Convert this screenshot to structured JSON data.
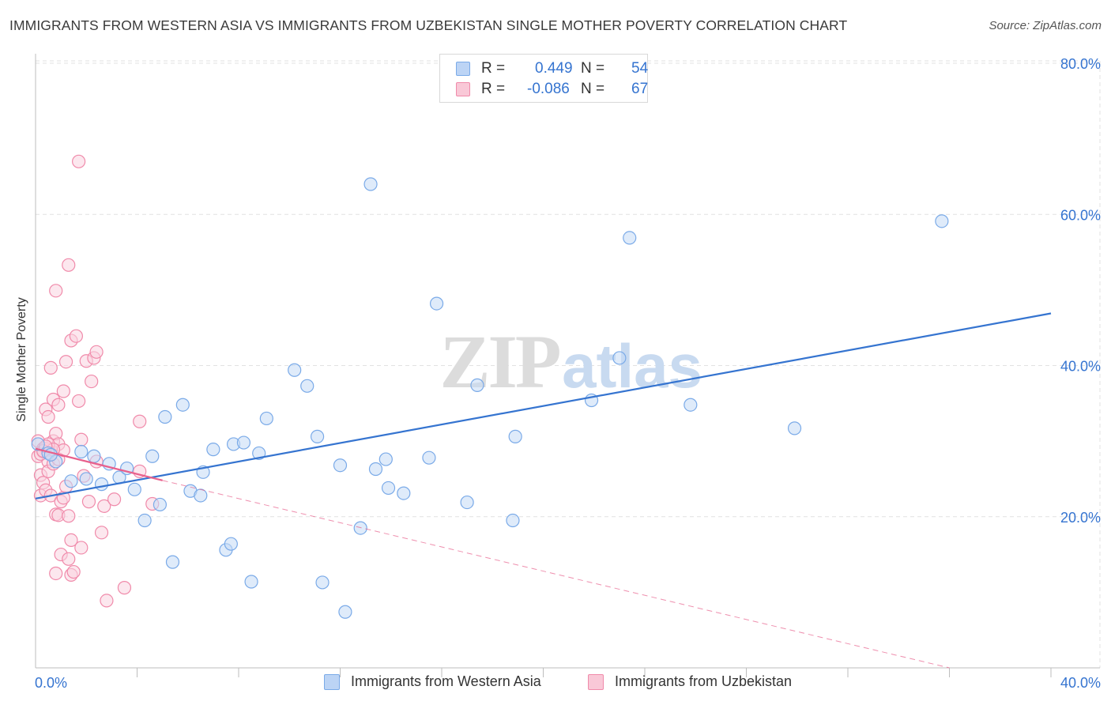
{
  "title": "IMMIGRANTS FROM WESTERN ASIA VS IMMIGRANTS FROM UZBEKISTAN SINGLE MOTHER POVERTY CORRELATION CHART",
  "source": "Source: ZipAtlas.com",
  "watermark": {
    "zip": "ZIP",
    "atlas": "atlas"
  },
  "legend": {
    "rows": [
      {
        "r_label": "R =",
        "r_value": "0.449",
        "n_label": "N =",
        "n_value": "54",
        "color": "#7aaae8",
        "fill": "#bcd4f5"
      },
      {
        "r_label": "R =",
        "r_value": "-0.086",
        "n_label": "N =",
        "n_value": "67",
        "color": "#f08aaa",
        "fill": "#f9c8d7"
      }
    ]
  },
  "bottom_legend": [
    {
      "label": "Immigrants from Western Asia"
    },
    {
      "label": "Immigrants from Uzbekistan"
    }
  ],
  "chart_data": {
    "type": "scatter",
    "xlabel": "",
    "ylabel": "Single Mother Poverty",
    "xlim": [
      0,
      40
    ],
    "ylim": [
      0,
      80
    ],
    "x_tick_labels": [
      "0.0%",
      "40.0%"
    ],
    "y_ticks": [
      20,
      40,
      60,
      80
    ],
    "y_tick_labels": [
      "20.0%",
      "40.0%",
      "60.0%",
      "80.0%"
    ],
    "grid": true,
    "series": [
      {
        "name": "Immigrants from Western Asia",
        "color": "#3574d0",
        "marker_stroke": "#7aaae8",
        "marker_fill": "#c5dbf6",
        "trendline": {
          "x": [
            0,
            40
          ],
          "y": [
            22.4,
            46.9
          ],
          "style": "solid"
        },
        "points": [
          [
            0.1,
            29.6
          ],
          [
            0.5,
            28.4
          ],
          [
            0.8,
            27.3
          ],
          [
            1.4,
            24.7
          ],
          [
            1.8,
            28.6
          ],
          [
            2.0,
            25.0
          ],
          [
            2.3,
            28.0
          ],
          [
            2.6,
            24.3
          ],
          [
            2.9,
            27.0
          ],
          [
            3.3,
            25.2
          ],
          [
            3.6,
            26.4
          ],
          [
            3.9,
            23.6
          ],
          [
            4.3,
            19.5
          ],
          [
            4.6,
            28.0
          ],
          [
            4.9,
            21.6
          ],
          [
            5.1,
            33.2
          ],
          [
            5.4,
            14.0
          ],
          [
            5.8,
            34.8
          ],
          [
            6.1,
            23.4
          ],
          [
            6.5,
            22.8
          ],
          [
            6.6,
            25.9
          ],
          [
            7.0,
            28.9
          ],
          [
            7.5,
            15.6
          ],
          [
            7.7,
            16.4
          ],
          [
            7.8,
            29.6
          ],
          [
            8.2,
            29.8
          ],
          [
            8.5,
            11.4
          ],
          [
            8.8,
            28.4
          ],
          [
            9.1,
            33.0
          ],
          [
            10.2,
            39.4
          ],
          [
            10.7,
            37.3
          ],
          [
            11.1,
            30.6
          ],
          [
            11.3,
            11.3
          ],
          [
            12.0,
            26.8
          ],
          [
            12.2,
            7.4
          ],
          [
            12.8,
            18.5
          ],
          [
            13.2,
            64.0
          ],
          [
            13.4,
            26.3
          ],
          [
            13.8,
            27.6
          ],
          [
            13.9,
            23.8
          ],
          [
            14.5,
            23.1
          ],
          [
            15.5,
            27.8
          ],
          [
            15.8,
            48.2
          ],
          [
            17.0,
            21.9
          ],
          [
            17.4,
            37.4
          ],
          [
            18.8,
            19.5
          ],
          [
            18.9,
            30.6
          ],
          [
            21.9,
            35.4
          ],
          [
            23.0,
            41.0
          ],
          [
            23.4,
            56.9
          ],
          [
            25.8,
            34.8
          ],
          [
            29.9,
            31.7
          ],
          [
            35.7,
            59.1
          ],
          [
            0.6,
            28.2
          ]
        ]
      },
      {
        "name": "Immigrants from Uzbekistan",
        "color": "#e8608c",
        "marker_stroke": "#f08aaa",
        "marker_fill": "#fad3e0",
        "trendline": {
          "x": [
            0,
            5
          ],
          "y": [
            29.0,
            24.8
          ],
          "style": "solid",
          "dashed_extension": {
            "x": [
              5,
              36
            ],
            "y": [
              24.8,
              0
            ]
          }
        },
        "points": [
          [
            0.1,
            30.0
          ],
          [
            0.1,
            28.0
          ],
          [
            0.2,
            25.5
          ],
          [
            0.2,
            22.8
          ],
          [
            0.3,
            29.0
          ],
          [
            0.3,
            24.5
          ],
          [
            0.4,
            34.2
          ],
          [
            0.4,
            23.5
          ],
          [
            0.5,
            33.2
          ],
          [
            0.5,
            27.3
          ],
          [
            0.5,
            26.0
          ],
          [
            0.6,
            39.7
          ],
          [
            0.6,
            28.8
          ],
          [
            0.6,
            22.8
          ],
          [
            0.7,
            35.5
          ],
          [
            0.7,
            30.0
          ],
          [
            0.7,
            27.0
          ],
          [
            0.8,
            31.0
          ],
          [
            0.8,
            49.9
          ],
          [
            0.8,
            20.3
          ],
          [
            0.8,
            12.5
          ],
          [
            0.9,
            34.8
          ],
          [
            0.9,
            29.6
          ],
          [
            0.9,
            27.6
          ],
          [
            0.9,
            20.2
          ],
          [
            1.0,
            22.0
          ],
          [
            1.0,
            15.0
          ],
          [
            1.1,
            36.6
          ],
          [
            1.1,
            28.8
          ],
          [
            1.1,
            22.5
          ],
          [
            1.2,
            40.5
          ],
          [
            1.2,
            24.0
          ],
          [
            1.3,
            53.3
          ],
          [
            1.3,
            20.1
          ],
          [
            1.3,
            14.4
          ],
          [
            1.4,
            43.3
          ],
          [
            1.4,
            16.9
          ],
          [
            1.4,
            12.3
          ],
          [
            1.5,
            12.7
          ],
          [
            1.6,
            43.9
          ],
          [
            1.7,
            67.0
          ],
          [
            1.7,
            35.3
          ],
          [
            1.8,
            15.9
          ],
          [
            1.8,
            30.2
          ],
          [
            1.9,
            25.4
          ],
          [
            2.0,
            40.6
          ],
          [
            2.1,
            22.0
          ],
          [
            2.2,
            37.9
          ],
          [
            2.3,
            41.0
          ],
          [
            2.4,
            41.8
          ],
          [
            2.4,
            27.3
          ],
          [
            2.6,
            17.9
          ],
          [
            2.7,
            21.4
          ],
          [
            2.8,
            8.9
          ],
          [
            3.1,
            22.3
          ],
          [
            3.5,
            10.6
          ],
          [
            4.1,
            26.0
          ],
          [
            4.1,
            32.6
          ],
          [
            4.6,
            21.7
          ],
          [
            0.3,
            28.6
          ],
          [
            0.4,
            29.0
          ],
          [
            0.5,
            29.6
          ],
          [
            0.6,
            28.3
          ],
          [
            0.7,
            28.9
          ],
          [
            0.2,
            28.3
          ],
          [
            0.3,
            28.7
          ],
          [
            0.4,
            29.3
          ]
        ]
      }
    ]
  }
}
